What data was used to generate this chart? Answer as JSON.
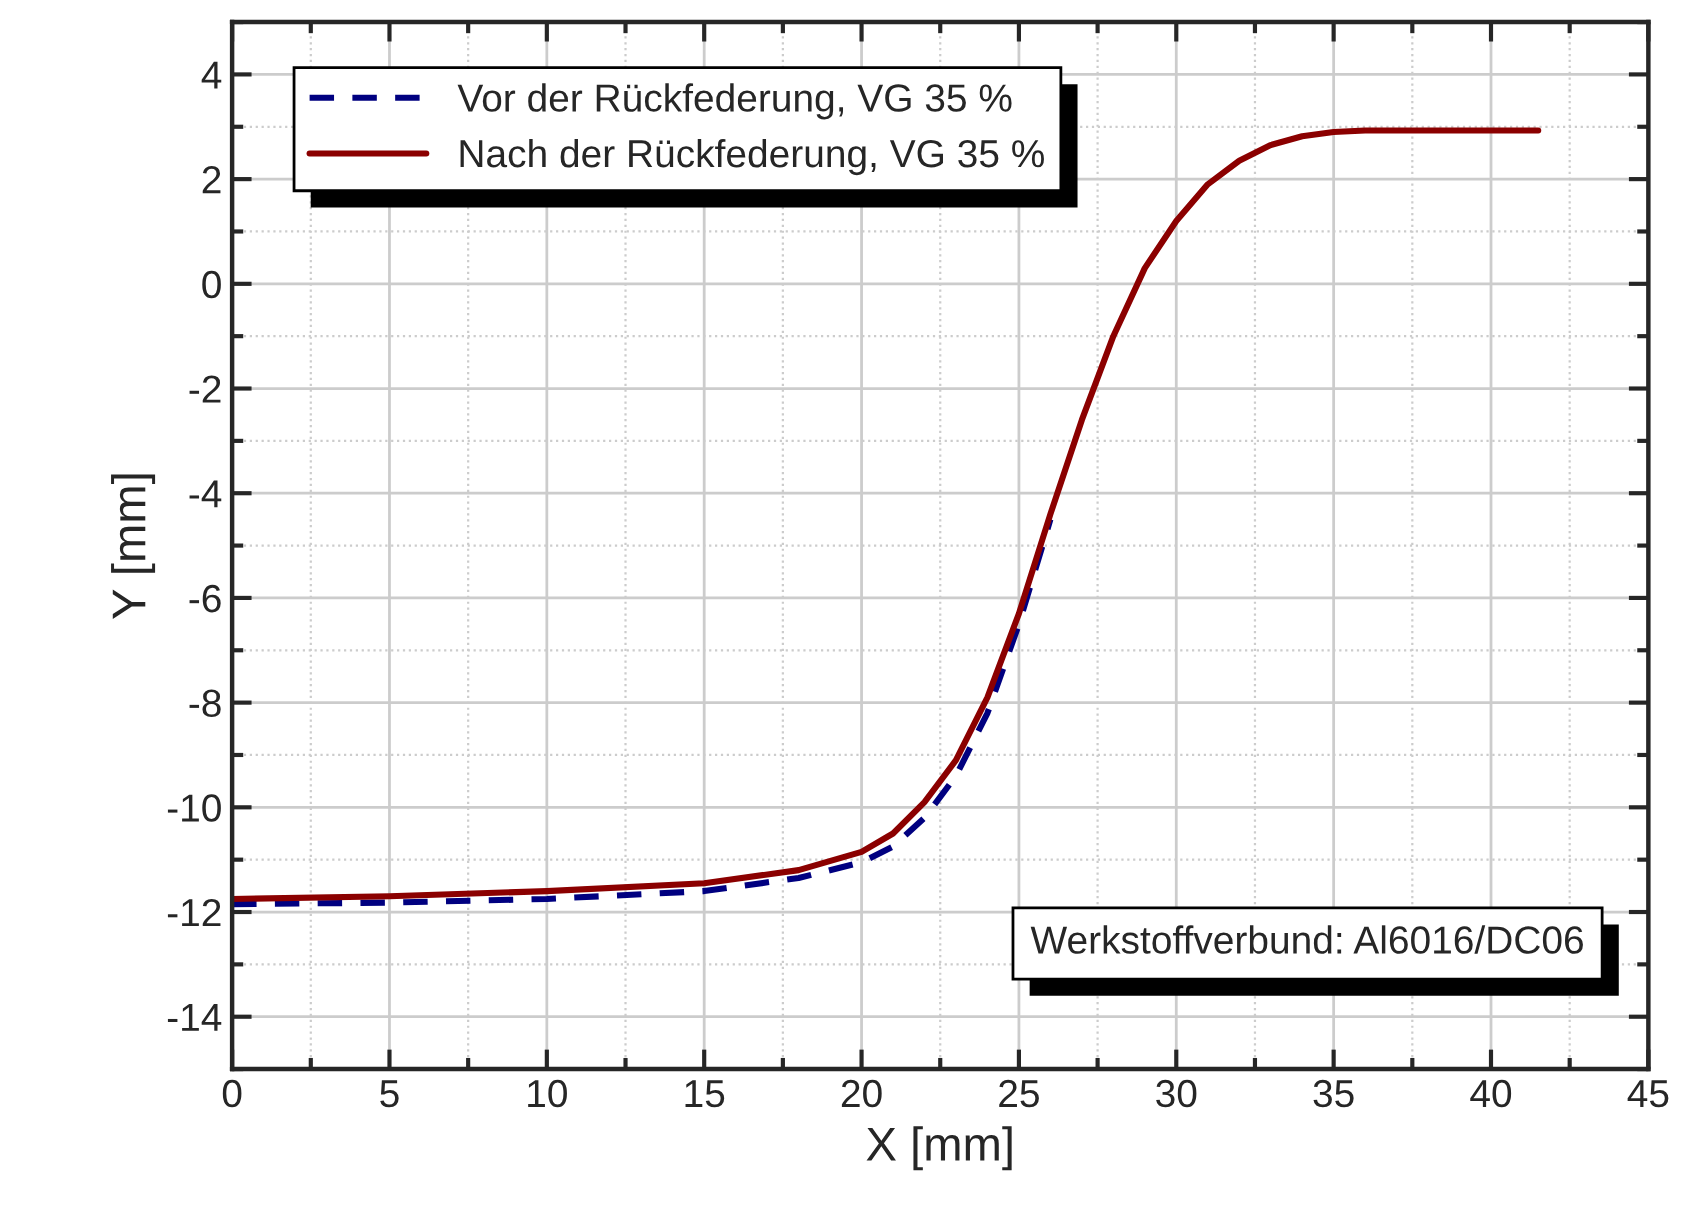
{
  "chart_data": {
    "type": "line",
    "xlabel": "X [mm]",
    "ylabel": "Y [mm]",
    "xlim": [
      0,
      45
    ],
    "xticks": [
      0,
      5,
      10,
      15,
      20,
      25,
      30,
      35,
      40,
      45
    ],
    "ylim": [
      -15,
      5
    ],
    "yticks": [
      -14,
      -12,
      -10,
      -8,
      -6,
      -4,
      -2,
      0,
      2,
      4
    ],
    "grid": true,
    "legend": "top left",
    "annotations": [
      "Werkstoffverbund: Al6016/DC06"
    ],
    "series": [
      {
        "name": "Vor der Rückfederung, VG 35 %",
        "color": "#000080",
        "line_style": "dashed",
        "x": [
          0,
          5,
          10,
          15,
          18,
          20,
          21,
          22,
          23,
          24,
          25,
          26
        ],
        "values": [
          -11.85,
          -11.82,
          -11.75,
          -11.6,
          -11.35,
          -11.05,
          -10.75,
          -10.2,
          -9.4,
          -8.2,
          -6.5,
          -4.5
        ]
      },
      {
        "name": "Nach der Rückfederung, VG 35 %",
        "color": "#8b0000",
        "line_style": "solid",
        "x": [
          0,
          5,
          10,
          15,
          18,
          20,
          21,
          22,
          23,
          24,
          25,
          26,
          27,
          28,
          29,
          30,
          31,
          32,
          33,
          34,
          35,
          36,
          38,
          41.5
        ],
        "values": [
          -11.75,
          -11.7,
          -11.6,
          -11.45,
          -11.2,
          -10.85,
          -10.5,
          -9.9,
          -9.1,
          -7.9,
          -6.3,
          -4.4,
          -2.6,
          -1.0,
          0.3,
          1.2,
          1.9,
          2.35,
          2.65,
          2.82,
          2.9,
          2.93,
          2.93,
          2.93
        ]
      }
    ]
  }
}
